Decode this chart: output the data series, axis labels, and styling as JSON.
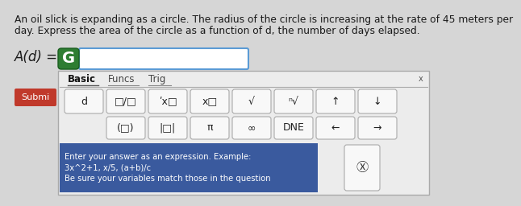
{
  "bg_color": "#d6d6d6",
  "title_text_line1": "An oil slick is expanding as a circle. The radius of the circle is increasing at the rate of 45 meters per",
  "title_text_line2": "day. Express the area of the circle as a function of d, the number of days elapsed.",
  "title_fontsize": 8.8,
  "title_color": "#1a1a1a",
  "Ad_label": "A(d) =",
  "Ad_fontsize": 12,
  "input_box_color": "#ffffff",
  "input_box_border": "#5b9bd5",
  "G_color": "#ffffff",
  "G_bg": "#2e7d32",
  "G_fontsize": 14,
  "panel_bg": "#ececec",
  "panel_border": "#aaaaaa",
  "tab_basic": "Basic",
  "tab_funcs": "Funcs",
  "tab_trig": "Trig",
  "tab_fontsize": 8.5,
  "close_x": "x",
  "submit_label": "Submi",
  "submit_bg": "#c0392b",
  "submit_color": "#ffffff",
  "submit_fontsize": 8,
  "row1_symbols": [
    "d",
    "□/□",
    "ʹx□",
    "x□",
    "√",
    "ⁿ√",
    "↑",
    "↓"
  ],
  "row2_symbols": [
    "(□)",
    "|□|",
    "π",
    "∞",
    "DNE",
    "←",
    "→"
  ],
  "note_bg": "#3a5a9e",
  "note_color": "#ffffff",
  "note_text": "Enter your answer as an expression. Example:\n3x^2+1, x/5, (a+b)/c\nBe sure your variables match those in the question",
  "note_fontsize": 7.2,
  "backspace_symbol": "Ⓧ",
  "btn_bg": "#f8f8f8",
  "btn_border": "#aaaaaa",
  "btn_fontsize": 9,
  "btn_shadow": "#cccccc"
}
